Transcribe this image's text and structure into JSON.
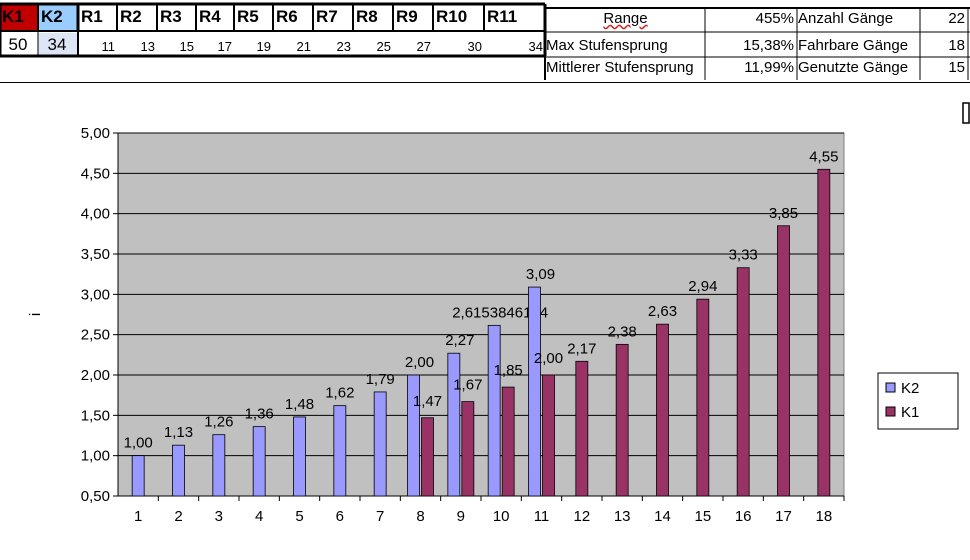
{
  "gear_table": {
    "headers": [
      "K1",
      "K2",
      "R1",
      "R2",
      "R3",
      "R4",
      "R5",
      "R6",
      "R7",
      "R8",
      "R9",
      "R10",
      "R11"
    ],
    "values": [
      "50",
      "34",
      "11",
      "13",
      "15",
      "17",
      "19",
      "21",
      "23",
      "25",
      "27",
      "30",
      "34"
    ]
  },
  "stats": {
    "range_label": "Range",
    "range_value": "455%",
    "max_step_label": "Max Stufensprung",
    "max_step_value": "15,38%",
    "avg_step_label": "Mittlerer Stufensprung",
    "avg_step_value": "11,99%",
    "gears_total_label": "Anzahl Gänge",
    "gears_total_value": "22",
    "gears_rideable_label": "Fahrbare Gänge",
    "gears_rideable_value": "18",
    "gears_used_label": "Genutzte Gänge",
    "gears_used_value": "15"
  },
  "colors": {
    "k1_header": "#c00000",
    "k2_header": "#99ccff",
    "k2_value_bg": "#dde6f7",
    "series_k2": "#9999ff",
    "series_k1": "#993366",
    "plot_bg": "#c0c0c0"
  },
  "chart_data": {
    "type": "bar",
    "ylabel": "i",
    "ylim": [
      0.5,
      5.0
    ],
    "y_ticks": [
      "0,50",
      "1,00",
      "1,50",
      "2,00",
      "2,50",
      "3,00",
      "3,50",
      "4,00",
      "4,50",
      "5,00"
    ],
    "categories": [
      "1",
      "2",
      "3",
      "4",
      "5",
      "6",
      "7",
      "8",
      "9",
      "10",
      "11",
      "12",
      "13",
      "14",
      "15",
      "16",
      "17",
      "18"
    ],
    "legend_position": "right",
    "grid": true,
    "series": [
      {
        "name": "K2",
        "values": [
          1.0,
          1.13,
          1.26,
          1.36,
          1.48,
          1.62,
          1.79,
          2.0,
          2.27,
          2.6153846154,
          3.09,
          null,
          null,
          null,
          null,
          null,
          null,
          null
        ],
        "labels": [
          "1,00",
          "1,13",
          "1,26",
          "1,36",
          "1,48",
          "1,62",
          "1,79",
          "2,00",
          "2,27",
          "2,6153846154",
          "3,09",
          "",
          "",
          "",
          "",
          "",
          "",
          ""
        ]
      },
      {
        "name": "K1",
        "values": [
          null,
          null,
          null,
          null,
          null,
          null,
          null,
          1.47,
          1.67,
          1.85,
          2.0,
          2.17,
          2.38,
          2.63,
          2.94,
          3.33,
          3.85,
          4.55
        ],
        "labels": [
          "",
          "",
          "",
          "",
          "",
          "",
          "",
          "1,47",
          "1,67",
          "1,85",
          "2,00",
          "2,17",
          "2,38",
          "2,63",
          "2,94",
          "3,33",
          "3,85",
          "4,55"
        ]
      }
    ]
  }
}
